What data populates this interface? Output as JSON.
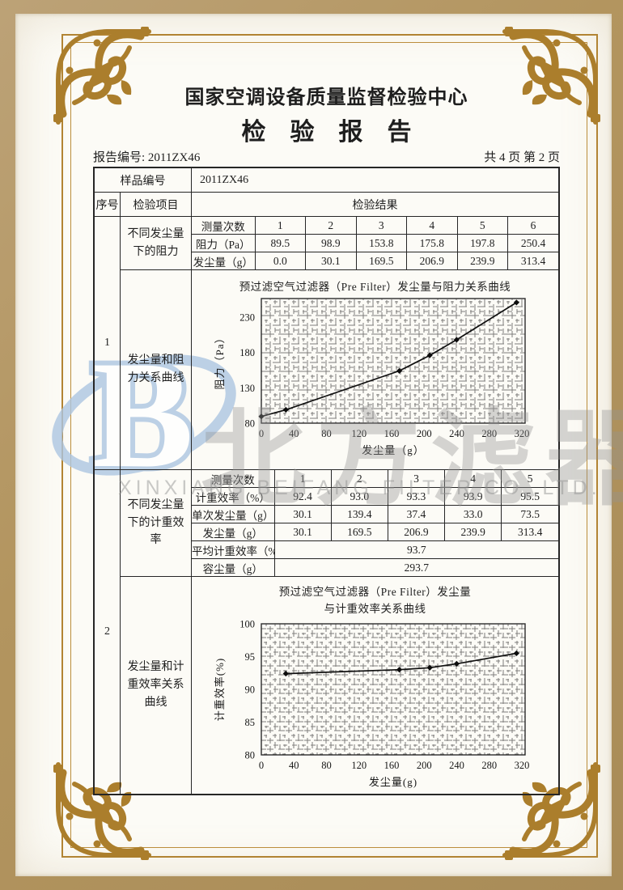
{
  "header": {
    "org": "国家空调设备质量监督检验中心",
    "title": "检　验　报　告",
    "report_no": "报告编号: 2011ZX46",
    "page_info": "共 4 页 第 2 页"
  },
  "sample": {
    "label": "样品编号",
    "value": "2011ZX46"
  },
  "table_head": {
    "seq": "序号",
    "item": "检验项目",
    "result": "检验结果"
  },
  "section1": {
    "seq": "1",
    "item_top": "不同发尘量下的阻力",
    "item_bottom": "发尘量和阻力关系曲线",
    "measurements": {
      "rows": [
        {
          "label": "测量次数",
          "values": [
            "1",
            "2",
            "3",
            "4",
            "5",
            "6"
          ]
        },
        {
          "label": "阻力（Pa）",
          "values": [
            "89.5",
            "98.9",
            "153.8",
            "175.8",
            "197.8",
            "250.4"
          ]
        },
        {
          "label": "发尘量（g）",
          "values": [
            "0.0",
            "30.1",
            "169.5",
            "206.9",
            "239.9",
            "313.4"
          ]
        }
      ]
    }
  },
  "section2": {
    "seq": "2",
    "item_top": "不同发尘量下的计重效率",
    "item_bottom": "发尘量和计重效率关系曲线",
    "measurements": {
      "rows": [
        {
          "label": "测量次数",
          "values": [
            "1",
            "2",
            "3",
            "4",
            "5"
          ]
        },
        {
          "label": "计重效率（%）",
          "values": [
            "92.4",
            "93.0",
            "93.3",
            "93.9",
            "95.5"
          ]
        },
        {
          "label": "单次发尘量（g）",
          "values": [
            "30.1",
            "139.4",
            "37.4",
            "33.0",
            "73.5"
          ]
        },
        {
          "label": "发尘量（g）",
          "values": [
            "30.1",
            "169.5",
            "206.9",
            "239.9",
            "313.4"
          ]
        }
      ],
      "summary": [
        {
          "label": "平均计重效率（%）",
          "value": "93.7"
        },
        {
          "label": "容尘量（g）",
          "value": "293.7"
        }
      ]
    }
  },
  "chart_data": [
    {
      "type": "line",
      "title": "预过滤空气过滤器（Pre Filter）发尘量与阻力关系曲线",
      "xlabel": "发尘量（g）",
      "ylabel": "阻力（Pa）",
      "x": [
        0,
        30.1,
        169.5,
        206.9,
        239.9,
        313.4
      ],
      "y": [
        89.5,
        98.9,
        153.8,
        175.8,
        197.8,
        250.4
      ],
      "xlim": [
        0,
        324
      ],
      "ylim": [
        80,
        256
      ],
      "xticks": [
        0,
        40,
        80,
        120,
        160,
        200,
        240,
        280,
        320
      ],
      "yticks": [
        80,
        130,
        180,
        230
      ],
      "grid": true,
      "marker": "diamond",
      "legend": "none"
    },
    {
      "type": "line",
      "title": "预过滤空气过滤器（Pre Filter）发尘量",
      "title_line2": "与计重效率关系曲线",
      "xlabel": "发尘量(g)",
      "ylabel": "计重效率(%)",
      "x": [
        30.1,
        169.5,
        206.9,
        239.9,
        313.4
      ],
      "y": [
        92.4,
        93.0,
        93.3,
        93.9,
        95.5
      ],
      "xlim": [
        0,
        324
      ],
      "ylim": [
        80,
        100
      ],
      "xticks": [
        0,
        40,
        80,
        120,
        160,
        200,
        240,
        280,
        320
      ],
      "yticks": [
        80,
        85,
        90,
        95,
        100
      ],
      "grid": true,
      "marker": "diamond",
      "legend": "none"
    }
  ],
  "watermark": {
    "cn": "北方滤器",
    "en": "XINXIANG BEIFANG FILTER CO.,LTD.",
    "logo_letter": "B",
    "blue": "#adc6e2",
    "gray": "#949494"
  },
  "colors": {
    "gold": "#b28433",
    "band": "#b3955f",
    "ink": "#1e1e1e"
  }
}
